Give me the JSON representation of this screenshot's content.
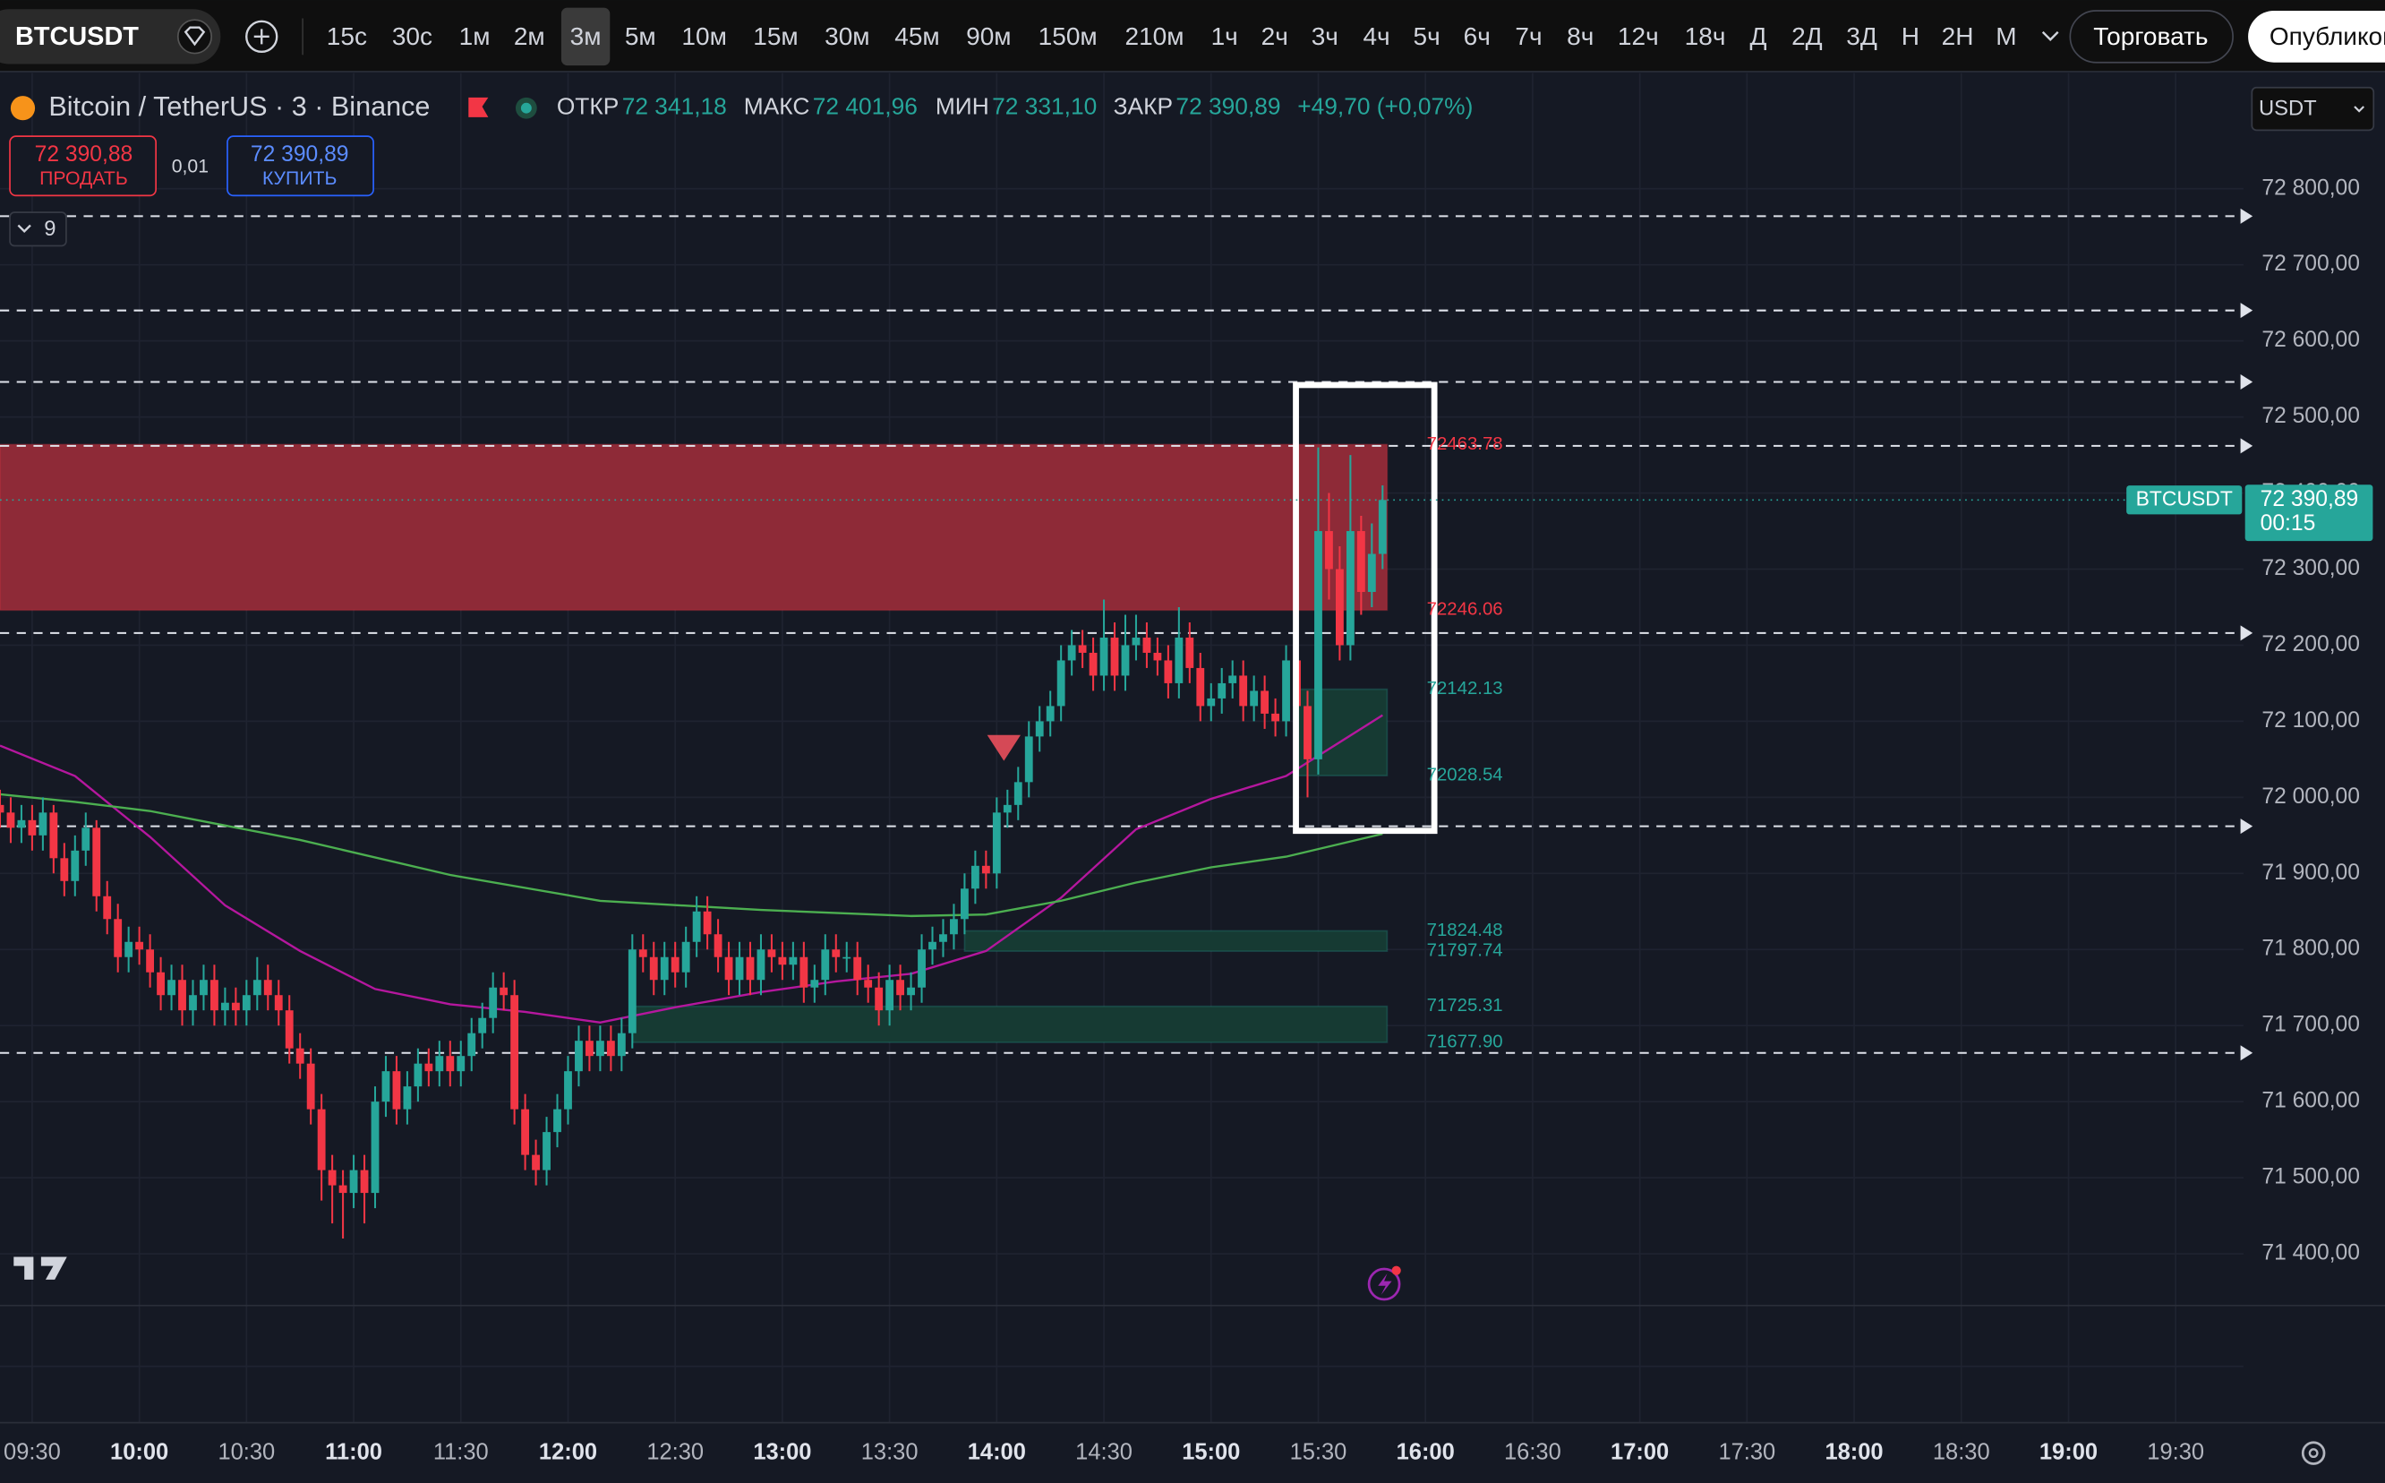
{
  "toolbar": {
    "symbol": "BTCUSDT",
    "intervals": [
      "15с",
      "30с",
      "1м",
      "2м",
      "3м",
      "5м",
      "10м",
      "15м",
      "30м",
      "45м",
      "90м",
      "150м",
      "210м",
      "1ч",
      "2ч",
      "3ч",
      "4ч",
      "5ч",
      "6ч",
      "7ч",
      "8ч",
      "12ч",
      "18ч",
      "Д",
      "2Д",
      "3Д",
      "Н",
      "2Н",
      "М"
    ],
    "active_index": 4,
    "trade": "Торговать",
    "publish": "Опубликовать"
  },
  "header": {
    "title": "Bitcoin / TetherUS · 3 · Binance",
    "ohlc": [
      {
        "label": "ОТКР",
        "value": "72 341,18"
      },
      {
        "label": "МАКС",
        "value": "72 401,96"
      },
      {
        "label": "МИН",
        "value": "72 331,10"
      },
      {
        "label": "ЗАКР",
        "value": "72 390,89"
      }
    ],
    "change": "+49,70 (+0,07%)",
    "sell": {
      "price": "72 390,88",
      "label": "ПРОДАТЬ"
    },
    "spread": "0,01",
    "buy": {
      "price": "72 390,89",
      "label": "КУПИТЬ"
    },
    "indicators": "9",
    "currency": "USDT"
  },
  "chart_data": {
    "type": "candlestick",
    "up_color": "#26a69a",
    "down_color": "#f23645",
    "x": [
      "09:21",
      "09:24",
      "09:27",
      "09:30",
      "09:33",
      "09:36",
      "09:39",
      "09:42",
      "09:45",
      "09:48",
      "09:51",
      "09:54",
      "09:57",
      "10:00",
      "10:03",
      "10:06",
      "10:09",
      "10:12",
      "10:15",
      "10:18",
      "10:21",
      "10:24",
      "10:27",
      "10:30",
      "10:33",
      "10:36",
      "10:39",
      "10:42",
      "10:45",
      "10:48",
      "10:51",
      "10:54",
      "10:57",
      "11:00",
      "11:03",
      "11:06",
      "11:09",
      "11:12",
      "11:15",
      "11:18",
      "11:21",
      "11:24",
      "11:27",
      "11:30",
      "11:33",
      "11:36",
      "11:39",
      "11:42",
      "11:45",
      "11:48",
      "11:51",
      "11:54",
      "11:57",
      "12:00",
      "12:03",
      "12:06",
      "12:09",
      "12:12",
      "12:15",
      "12:18",
      "12:21",
      "12:24",
      "12:27",
      "12:30",
      "12:33",
      "12:36",
      "12:39",
      "12:42",
      "12:45",
      "12:48",
      "12:51",
      "12:54",
      "12:57",
      "13:00",
      "13:03",
      "13:06",
      "13:09",
      "13:12",
      "13:15",
      "13:18",
      "13:21",
      "13:24",
      "13:27",
      "13:30",
      "13:33",
      "13:36",
      "13:39",
      "13:42",
      "13:45",
      "13:48",
      "13:51",
      "13:54",
      "13:57",
      "14:00",
      "14:03",
      "14:06",
      "14:09",
      "14:12",
      "14:15",
      "14:18",
      "14:21",
      "14:24",
      "14:27",
      "14:30",
      "14:33",
      "14:36",
      "14:39",
      "14:42",
      "14:45",
      "14:48",
      "14:51",
      "14:54",
      "14:57",
      "15:00",
      "15:03",
      "15:06",
      "15:09",
      "15:12",
      "15:15",
      "15:18",
      "15:21",
      "15:24",
      "15:27",
      "15:30",
      "15:33",
      "15:36",
      "15:39",
      "15:42",
      "15:45",
      "15:48"
    ],
    "open": [
      71990,
      71980,
      71960,
      71970,
      71950,
      71980,
      71920,
      71890,
      71930,
      71960,
      71870,
      71840,
      71790,
      71810,
      71800,
      71770,
      71740,
      71760,
      71720,
      71740,
      71760,
      71720,
      71730,
      71720,
      71740,
      71760,
      71740,
      71720,
      71670,
      71650,
      71590,
      71510,
      71490,
      71480,
      71510,
      71480,
      71600,
      71640,
      71590,
      71620,
      71650,
      71640,
      71660,
      71640,
      71660,
      71690,
      71710,
      71750,
      71740,
      71590,
      71530,
      71510,
      71560,
      71590,
      71640,
      71680,
      71660,
      71680,
      71660,
      71690,
      71800,
      71790,
      71760,
      71790,
      71770,
      71810,
      71850,
      71820,
      71790,
      71760,
      71790,
      71760,
      71800,
      71790,
      71780,
      71790,
      71750,
      71760,
      71800,
      71790,
      71790,
      71760,
      71750,
      71720,
      71760,
      71740,
      71750,
      71800,
      71810,
      71820,
      71840,
      71880,
      71910,
      71900,
      71980,
      71990,
      72020,
      72080,
      72100,
      72120,
      72180,
      72200,
      72190,
      72160,
      72210,
      72160,
      72200,
      72210,
      72190,
      72180,
      72150,
      72210,
      72170,
      72120,
      72130,
      72150,
      72160,
      72120,
      72140,
      72110,
      72100,
      72180,
      72120,
      72050,
      72350,
      72300,
      72200,
      72350,
      72270,
      72320
    ],
    "high": [
      72010,
      72000,
      71990,
      71990,
      72000,
      71990,
      71940,
      71950,
      71980,
      71970,
      71890,
      71860,
      71830,
      71830,
      71820,
      71790,
      71780,
      71780,
      71760,
      71780,
      71780,
      71750,
      71750,
      71760,
      71790,
      71780,
      71760,
      71740,
      71690,
      71670,
      71610,
      71530,
      71510,
      71530,
      71530,
      71620,
      71660,
      71660,
      71640,
      71670,
      71670,
      71680,
      71680,
      71680,
      71710,
      71730,
      71770,
      71770,
      71760,
      71610,
      71550,
      71580,
      71610,
      71660,
      71700,
      71700,
      71700,
      71700,
      71710,
      71820,
      71820,
      71810,
      71810,
      71810,
      71830,
      71870,
      71870,
      71840,
      71810,
      71810,
      71810,
      71820,
      71820,
      71810,
      71810,
      71810,
      71780,
      71820,
      71820,
      71810,
      71810,
      71780,
      71770,
      71780,
      71780,
      71770,
      71820,
      71830,
      71840,
      71860,
      71900,
      71930,
      71930,
      72000,
      72010,
      72040,
      72100,
      72120,
      72140,
      72200,
      72220,
      72220,
      72210,
      72260,
      72230,
      72240,
      72240,
      72230,
      72210,
      72200,
      72250,
      72230,
      72190,
      72150,
      72170,
      72180,
      72180,
      72160,
      72160,
      72130,
      72200,
      72200,
      72140,
      72460,
      72400,
      72330,
      72450,
      72370,
      72360,
      72410
    ],
    "low": [
      71960,
      71940,
      71940,
      71930,
      71930,
      71900,
      71870,
      71870,
      71910,
      71850,
      71820,
      71770,
      71770,
      71780,
      71750,
      71720,
      71720,
      71700,
      71700,
      71720,
      71700,
      71700,
      71700,
      71700,
      71720,
      71720,
      71700,
      71650,
      71630,
      71570,
      71470,
      71440,
      71420,
      71460,
      71440,
      71460,
      71580,
      71570,
      71570,
      71600,
      71620,
      71620,
      71620,
      71620,
      71640,
      71670,
      71690,
      71720,
      71570,
      71510,
      71490,
      71490,
      71540,
      71570,
      71620,
      71640,
      71640,
      71640,
      71640,
      71670,
      71770,
      71740,
      71740,
      71750,
      71750,
      71790,
      71800,
      71770,
      71740,
      71740,
      71740,
      71740,
      71770,
      71760,
      71760,
      71730,
      71730,
      71740,
      71770,
      71770,
      71740,
      71730,
      71700,
      71700,
      71720,
      71720,
      71730,
      71780,
      71790,
      71800,
      71820,
      71860,
      71880,
      71880,
      71960,
      71970,
      72000,
      72060,
      72080,
      72100,
      72160,
      72170,
      72140,
      72140,
      72140,
      72140,
      72180,
      72170,
      72160,
      72130,
      72130,
      72150,
      72100,
      72100,
      72110,
      72130,
      72100,
      72100,
      72090,
      72080,
      72080,
      72100,
      72000,
      72030,
      72260,
      72180,
      72180,
      72240,
      72250,
      72300
    ],
    "close": [
      71980,
      71960,
      71970,
      71950,
      71980,
      71920,
      71890,
      71930,
      71960,
      71870,
      71840,
      71790,
      71810,
      71800,
      71770,
      71740,
      71760,
      71720,
      71740,
      71760,
      71720,
      71730,
      71720,
      71740,
      71760,
      71740,
      71720,
      71670,
      71650,
      71590,
      71510,
      71490,
      71480,
      71510,
      71480,
      71600,
      71640,
      71590,
      71620,
      71650,
      71640,
      71660,
      71640,
      71660,
      71690,
      71710,
      71750,
      71740,
      71590,
      71530,
      71510,
      71560,
      71590,
      71640,
      71680,
      71660,
      71680,
      71660,
      71690,
      71800,
      71790,
      71760,
      71790,
      71770,
      71810,
      71850,
      71820,
      71790,
      71760,
      71790,
      71760,
      71800,
      71790,
      71780,
      71790,
      71750,
      71760,
      71800,
      71790,
      71790,
      71760,
      71750,
      71720,
      71760,
      71740,
      71750,
      71800,
      71810,
      71820,
      71840,
      71880,
      71910,
      71900,
      71980,
      71990,
      72020,
      72080,
      72100,
      72120,
      72180,
      72200,
      72190,
      72160,
      72210,
      72160,
      72200,
      72210,
      72190,
      72180,
      72150,
      72210,
      72170,
      72120,
      72130,
      72150,
      72160,
      72120,
      72140,
      72110,
      72100,
      72180,
      72120,
      72050,
      72350,
      72300,
      72200,
      72350,
      72270,
      72320,
      72390.89
    ],
    "lines": [
      {
        "color": "#b5179e",
        "x": [
          "09:21",
          "09:42",
          "10:03",
          "10:24",
          "10:45",
          "11:06",
          "11:27",
          "11:48",
          "12:09",
          "12:30",
          "12:54",
          "13:15",
          "13:36",
          "13:57",
          "14:18",
          "14:39",
          "15:00",
          "15:21",
          "15:48"
        ],
        "values": [
          72068,
          72028,
          71948,
          71858,
          71798,
          71748,
          71728,
          71718,
          71704,
          71724,
          71744,
          71758,
          71768,
          71798,
          71868,
          71958,
          71998,
          72028,
          72108
        ]
      },
      {
        "color": "#4caf50",
        "x": [
          "09:21",
          "09:42",
          "10:03",
          "10:45",
          "11:27",
          "12:09",
          "12:54",
          "13:36",
          "13:57",
          "14:18",
          "14:39",
          "15:00",
          "15:21",
          "15:48"
        ],
        "values": [
          72004,
          71994,
          71982,
          71944,
          71898,
          71864,
          71852,
          71844,
          71846,
          71864,
          71888,
          71908,
          71922,
          71952
        ]
      }
    ],
    "zones": [
      {
        "from": "09:21",
        "to": "15:48",
        "fill": "#8e2a37",
        "color": "#f23645",
        "values": [
          72463.78,
          72246.06
        ],
        "value_labels": [
          "72463.78",
          "72246.06"
        ]
      },
      {
        "from": "15:24",
        "to": "15:48",
        "fill": "#163a33",
        "color": "#26a69a",
        "values": [
          72142.13,
          72028.54
        ],
        "value_labels": [
          "72142.13",
          "72028.54"
        ]
      },
      {
        "from": "13:51",
        "to": "15:48",
        "fill": "#163a33",
        "color": "#26a69a",
        "values": [
          71824.48,
          71797.74
        ],
        "value_labels": [
          "71824.48",
          "71797.74"
        ]
      },
      {
        "from": "12:18",
        "to": "15:48",
        "fill": "#163a33",
        "color": "#26a69a",
        "values": [
          71725.31,
          71677.9
        ],
        "value_labels": [
          "71725.31",
          "71677.90"
        ]
      }
    ],
    "levels": [
      72764,
      72640,
      72546,
      72462,
      72216,
      71962,
      71664
    ],
    "last_label": "72 390,89",
    "countdown": "00:15",
    "xlim": [
      "09:21",
      "19:49"
    ],
    "xticks": [
      "09:30",
      "10:00",
      "10:30",
      "11:00",
      "11:30",
      "12:00",
      "12:30",
      "13:00",
      "13:30",
      "14:00",
      "14:30",
      "15:00",
      "15:30",
      "16:00",
      "16:30",
      "17:00",
      "17:30",
      "18:00",
      "18:30",
      "19:00",
      "19:30"
    ],
    "ylim": [
      71332,
      72952
    ],
    "yticks": [
      {
        "value": 71400,
        "label": "71 400,00"
      },
      {
        "value": 71500,
        "label": "71 500,00"
      },
      {
        "value": 71600,
        "label": "71 600,00"
      },
      {
        "value": 71700,
        "label": "71 700,00"
      },
      {
        "value": 71800,
        "label": "71 800,00"
      },
      {
        "value": 71900,
        "label": "71 900,00"
      },
      {
        "value": 72000,
        "label": "72 000,00"
      },
      {
        "value": 72100,
        "label": "72 100,00"
      },
      {
        "value": 72200,
        "label": "72 200,00"
      },
      {
        "value": 72300,
        "label": "72 300,00"
      },
      {
        "value": 72400,
        "label": "72 400,00"
      },
      {
        "value": 72500,
        "label": "72 500,00"
      },
      {
        "value": 72600,
        "label": "72 600,00"
      },
      {
        "value": 72700,
        "label": "72 700,00"
      },
      {
        "value": 72800,
        "label": "72 800,00"
      }
    ],
    "grid": true
  }
}
